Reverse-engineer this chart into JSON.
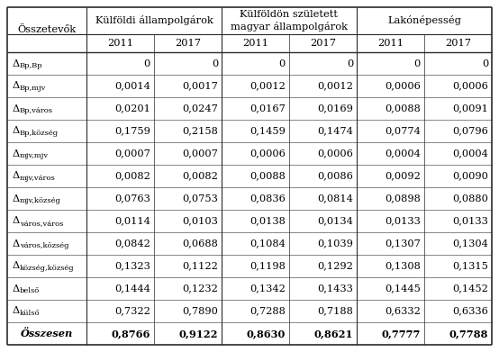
{
  "col_group_labels": [
    "Külföldi állampolgárok",
    "Külföldön született\nmagyar állampolgárok",
    "Lakónépesség"
  ],
  "sub_cols": [
    "2011",
    "2017",
    "2011",
    "2017",
    "2011",
    "2017"
  ],
  "row_labels": [
    "Összetevők",
    "ΔBp,Bp",
    "ΔBp,mjv",
    "ΔBp,város",
    "ΔBp,község",
    "Δmjv,mjv",
    "Δmjv,város",
    "Δmjv,község",
    "Δváros,város",
    "Δváros,község",
    "Δközség,község",
    "Δbelső",
    "Δkülső",
    "Összesen"
  ],
  "row_subscripts": [
    "",
    "Bp,Bp",
    "Bp,mjv",
    "Bp,város",
    "Bp,község",
    "mjv,mjv",
    "mjv,város",
    "mjv,község",
    "város,város",
    "város,község",
    "község,község",
    "belső",
    "külső",
    ""
  ],
  "data": [
    [
      "0",
      "0",
      "0",
      "0",
      "0",
      "0"
    ],
    [
      "0,0014",
      "0,0017",
      "0,0012",
      "0,0012",
      "0,0006",
      "0,0006"
    ],
    [
      "0,0201",
      "0,0247",
      "0,0167",
      "0,0169",
      "0,0088",
      "0,0091"
    ],
    [
      "0,1759",
      "0,2158",
      "0,1459",
      "0,1474",
      "0,0774",
      "0,0796"
    ],
    [
      "0,0007",
      "0,0007",
      "0,0006",
      "0,0006",
      "0,0004",
      "0,0004"
    ],
    [
      "0,0082",
      "0,0082",
      "0,0088",
      "0,0086",
      "0,0092",
      "0,0090"
    ],
    [
      "0,0763",
      "0,0753",
      "0,0836",
      "0,0814",
      "0,0898",
      "0,0880"
    ],
    [
      "0,0114",
      "0,0103",
      "0,0138",
      "0,0134",
      "0,0133",
      "0,0133"
    ],
    [
      "0,0842",
      "0,0688",
      "0,1084",
      "0,1039",
      "0,1307",
      "0,1304"
    ],
    [
      "0,1323",
      "0,1122",
      "0,1198",
      "0,1292",
      "0,1308",
      "0,1315"
    ],
    [
      "0,1444",
      "0,1232",
      "0,1342",
      "0,1433",
      "0,1445",
      "0,1452"
    ],
    [
      "0,7322",
      "0,7890",
      "0,7288",
      "0,7188",
      "0,6332",
      "0,6336"
    ],
    [
      "0,8766",
      "0,9122",
      "0,8630",
      "0,8621",
      "0,7777",
      "0,7788"
    ]
  ],
  "background_color": "#ffffff",
  "line_color": "#2b2b2b",
  "font_size": 8.2,
  "header_font_size": 8.2
}
